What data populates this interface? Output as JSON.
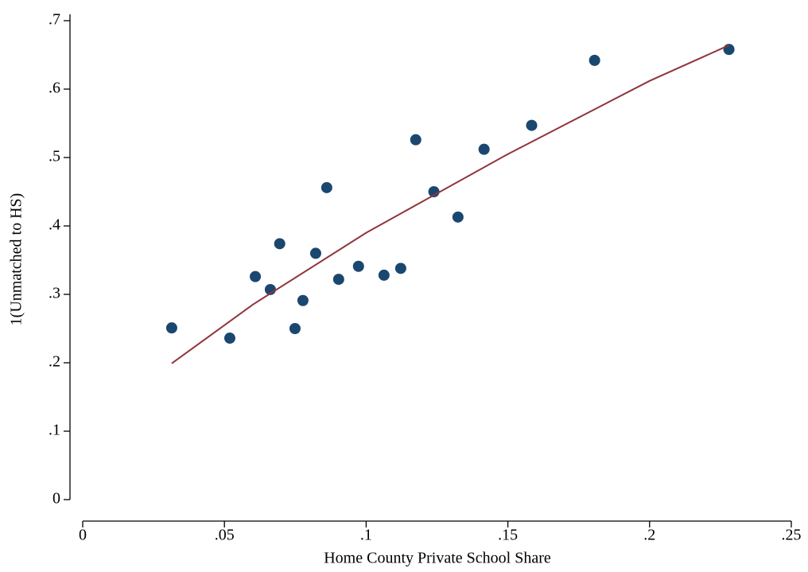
{
  "chart_data": {
    "type": "scatter",
    "x_label": "Home County Private School Share",
    "y_label": "1(Unmatched to HS)",
    "xlim": [
      0,
      0.25
    ],
    "ylim": [
      0,
      0.7
    ],
    "xticks": [
      0,
      {
        "value": 0.05,
        "label": ".05"
      },
      {
        "value": 0.1,
        "label": ".1"
      },
      {
        "value": 0.15,
        "label": ".15"
      },
      {
        "value": 0.2,
        "label": ".2"
      },
      {
        "value": 0.25,
        "label": ".25"
      }
    ],
    "yticks": [
      0,
      {
        "value": 0.1,
        "label": ".1"
      },
      {
        "value": 0.2,
        "label": ".2"
      },
      {
        "value": 0.3,
        "label": ".3"
      },
      {
        "value": 0.4,
        "label": ".4"
      },
      {
        "value": 0.5,
        "label": ".5"
      },
      {
        "value": 0.6,
        "label": ".6"
      },
      {
        "value": 0.7,
        "label": ".7"
      }
    ],
    "grid": false,
    "series": [
      {
        "type": "scatter",
        "color": "#1a476f",
        "x": [
          0.0314,
          0.0519,
          0.0609,
          0.0662,
          0.0695,
          0.0749,
          0.0777,
          0.0822,
          0.0861,
          0.0903,
          0.0973,
          0.1063,
          0.1122,
          0.1175,
          0.1239,
          0.1324,
          0.1416,
          0.1584,
          0.1806,
          0.228
        ],
        "values": [
          0.251,
          0.236,
          0.326,
          0.307,
          0.374,
          0.25,
          0.291,
          0.36,
          0.456,
          0.322,
          0.341,
          0.328,
          0.338,
          0.526,
          0.45,
          0.413,
          0.512,
          0.547,
          0.642,
          0.658
        ]
      },
      {
        "type": "line",
        "color": "#90353b",
        "x": [
          0.0314,
          0.06,
          0.1,
          0.15,
          0.2,
          0.228
        ],
        "values": [
          0.199,
          0.285,
          0.39,
          0.505,
          0.612,
          0.664
        ]
      }
    ]
  }
}
